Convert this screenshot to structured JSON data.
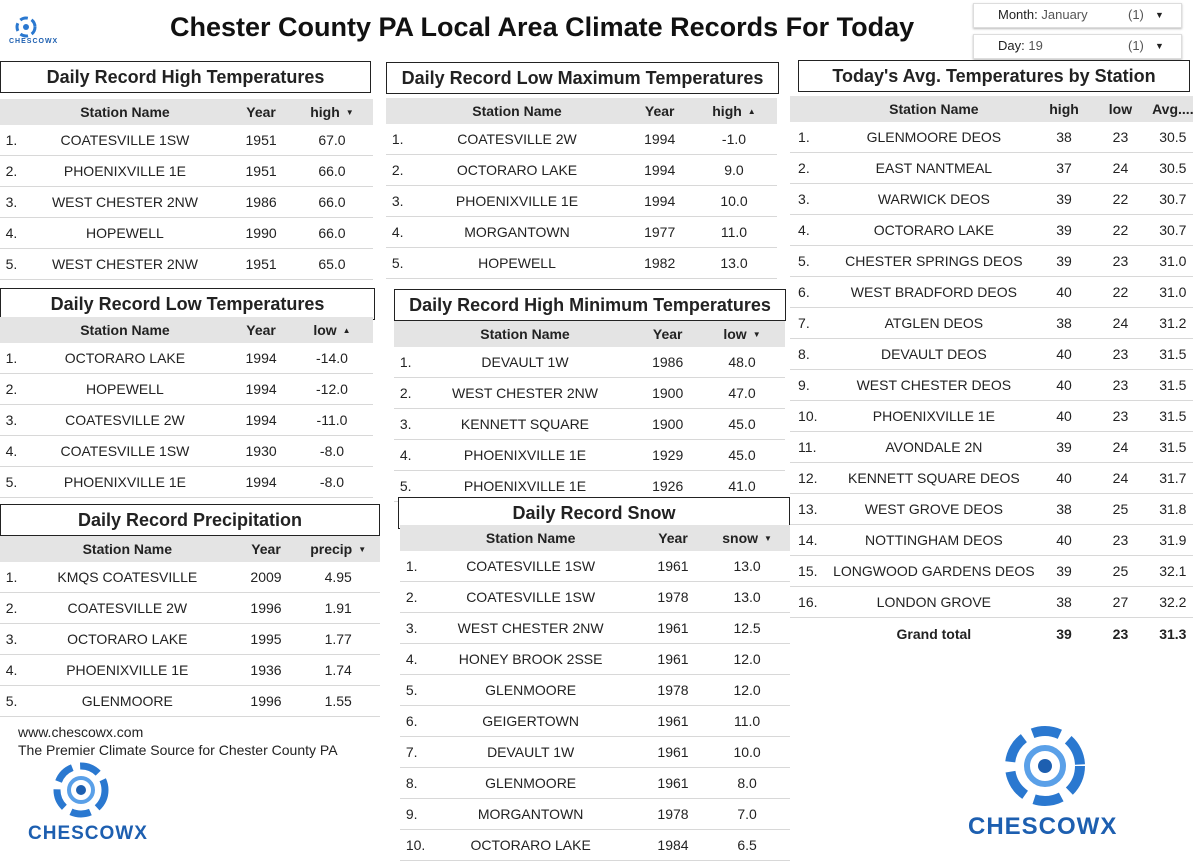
{
  "header": {
    "title": "Chester County PA Local Area Climate Records For Today",
    "logo_text": "CHESCOWX"
  },
  "filters": [
    {
      "label": "Month:",
      "value": "January",
      "count": "(1)"
    },
    {
      "label": "Day:",
      "value": "19",
      "count": "(1)"
    }
  ],
  "tables": [
    {
      "title": "Daily Record High Temperatures",
      "columns": [
        "Station Name",
        "Year",
        "high"
      ],
      "sort": "desc",
      "rows": [
        [
          "1.",
          "COATESVILLE 1SW",
          "1951",
          "67.0"
        ],
        [
          "2.",
          "PHOENIXVILLE 1E",
          "1951",
          "66.0"
        ],
        [
          "3.",
          "WEST CHESTER 2NW",
          "1986",
          "66.0"
        ],
        [
          "4.",
          "HOPEWELL",
          "1990",
          "66.0"
        ],
        [
          "5.",
          "WEST CHESTER 2NW",
          "1951",
          "65.0"
        ]
      ]
    },
    {
      "title": "Daily Record Low Maximum Temperatures",
      "columns": [
        "Station Name",
        "Year",
        "high"
      ],
      "sort": "asc",
      "rows": [
        [
          "1.",
          "COATESVILLE 2W",
          "1994",
          "-1.0"
        ],
        [
          "2.",
          "OCTORARO LAKE",
          "1994",
          "9.0"
        ],
        [
          "3.",
          "PHOENIXVILLE 1E",
          "1994",
          "10.0"
        ],
        [
          "4.",
          "MORGANTOWN",
          "1977",
          "11.0"
        ],
        [
          "5.",
          "HOPEWELL",
          "1982",
          "13.0"
        ]
      ]
    },
    {
      "title": "Today's Avg. Temperatures by Station",
      "columns": [
        "Station Name",
        "high",
        "low",
        "Avg...."
      ],
      "rows": [
        [
          "1.",
          "GLENMOORE DEOS",
          "38",
          "23",
          "30.5"
        ],
        [
          "2.",
          "EAST NANTMEAL",
          "37",
          "24",
          "30.5"
        ],
        [
          "3.",
          "WARWICK DEOS",
          "39",
          "22",
          "30.7"
        ],
        [
          "4.",
          "OCTORARO LAKE",
          "39",
          "22",
          "30.7"
        ],
        [
          "5.",
          "CHESTER SPRINGS DEOS",
          "39",
          "23",
          "31.0"
        ],
        [
          "6.",
          "WEST BRADFORD DEOS",
          "40",
          "22",
          "31.0"
        ],
        [
          "7.",
          "ATGLEN DEOS",
          "38",
          "24",
          "31.2"
        ],
        [
          "8.",
          "DEVAULT DEOS",
          "40",
          "23",
          "31.5"
        ],
        [
          "9.",
          "WEST CHESTER DEOS",
          "40",
          "23",
          "31.5"
        ],
        [
          "10.",
          "PHOENIXVILLE 1E",
          "40",
          "23",
          "31.5"
        ],
        [
          "11.",
          "AVONDALE 2N",
          "39",
          "24",
          "31.5"
        ],
        [
          "12.",
          "KENNETT SQUARE DEOS",
          "40",
          "24",
          "31.7"
        ],
        [
          "13.",
          "WEST GROVE DEOS",
          "38",
          "25",
          "31.8"
        ],
        [
          "14.",
          "NOTTINGHAM DEOS",
          "40",
          "23",
          "31.9"
        ],
        [
          "15.",
          "LONGWOOD GARDENS DEOS",
          "39",
          "25",
          "32.1"
        ],
        [
          "16.",
          "LONDON GROVE",
          "38",
          "27",
          "32.2"
        ]
      ],
      "total": [
        "Grand total",
        "39",
        "23",
        "31.3"
      ]
    },
    {
      "title": "Daily Record Low Temperatures",
      "columns": [
        "Station Name",
        "Year",
        "low"
      ],
      "sort": "asc",
      "rows": [
        [
          "1.",
          "OCTORARO LAKE",
          "1994",
          "-14.0"
        ],
        [
          "2.",
          "HOPEWELL",
          "1994",
          "-12.0"
        ],
        [
          "3.",
          "COATESVILLE 2W",
          "1994",
          "-11.0"
        ],
        [
          "4.",
          "COATESVILLE 1SW",
          "1930",
          "-8.0"
        ],
        [
          "5.",
          "PHOENIXVILLE 1E",
          "1994",
          "-8.0"
        ]
      ]
    },
    {
      "title": "Daily Record High Minimum Temperatures",
      "columns": [
        "Station Name",
        "Year",
        "low"
      ],
      "sort": "desc",
      "rows": [
        [
          "1.",
          "DEVAULT 1W",
          "1986",
          "48.0"
        ],
        [
          "2.",
          "WEST CHESTER 2NW",
          "1900",
          "47.0"
        ],
        [
          "3.",
          "KENNETT SQUARE",
          "1900",
          "45.0"
        ],
        [
          "4.",
          "PHOENIXVILLE 1E",
          "1929",
          "45.0"
        ],
        [
          "5.",
          "PHOENIXVILLE 1E",
          "1926",
          "41.0"
        ]
      ]
    },
    {
      "title": "Daily Record Precipitation",
      "columns": [
        "Station Name",
        "Year",
        "precip"
      ],
      "sort": "desc",
      "rows": [
        [
          "1.",
          "KMQS COATESVILLE",
          "2009",
          "4.95"
        ],
        [
          "2.",
          "COATESVILLE 2W",
          "1996",
          "1.91"
        ],
        [
          "3.",
          "OCTORARO LAKE",
          "1995",
          "1.77"
        ],
        [
          "4.",
          "PHOENIXVILLE 1E",
          "1936",
          "1.74"
        ],
        [
          "5.",
          "GLENMOORE",
          "1996",
          "1.55"
        ]
      ]
    },
    {
      "title": "Daily Record Snow",
      "columns": [
        "Station Name",
        "Year",
        "snow"
      ],
      "sort": "desc",
      "rows": [
        [
          "1.",
          "COATESVILLE 1SW",
          "1961",
          "13.0"
        ],
        [
          "2.",
          "COATESVILLE 1SW",
          "1978",
          "13.0"
        ],
        [
          "3.",
          "WEST CHESTER 2NW",
          "1961",
          "12.5"
        ],
        [
          "4.",
          "HONEY BROOK 2SSE",
          "1961",
          "12.0"
        ],
        [
          "5.",
          "GLENMOORE",
          "1978",
          "12.0"
        ],
        [
          "6.",
          "GEIGERTOWN",
          "1961",
          "11.0"
        ],
        [
          "7.",
          "DEVAULT 1W",
          "1961",
          "10.0"
        ],
        [
          "8.",
          "GLENMOORE",
          "1961",
          "8.0"
        ],
        [
          "9.",
          "MORGANTOWN",
          "1978",
          "7.0"
        ],
        [
          "10.",
          "OCTORARO LAKE",
          "1984",
          "6.5"
        ]
      ]
    }
  ],
  "footer": {
    "url": "www.chescowx.com",
    "tagline": "The Premier Climate Source for Chester County PA",
    "logo_text": "CHESCOWX",
    "logo_text_right": "CHESCOWX"
  }
}
